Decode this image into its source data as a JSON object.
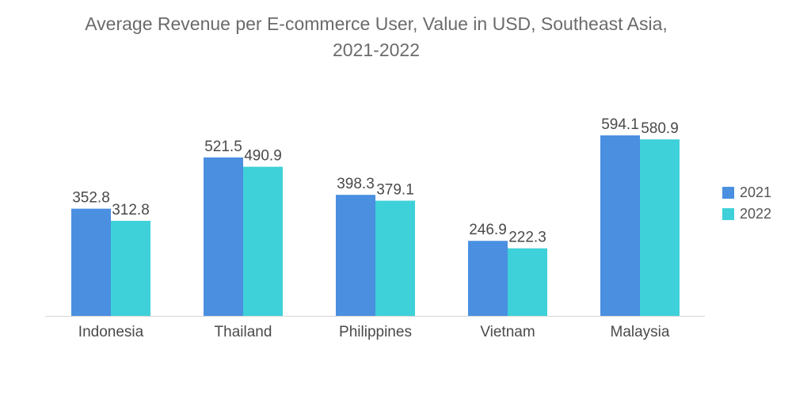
{
  "chart_data": {
    "type": "bar",
    "title": "Average Revenue per E-commerce User, Value in USD, Southeast Asia,",
    "subtitle": "2021-2022",
    "categories": [
      "Indonesia",
      "Thailand",
      "Philippines",
      "Vietnam",
      "Malaysia"
    ],
    "series": [
      {
        "name": "2021",
        "values": [
          352.8,
          521.5,
          398.3,
          246.9,
          594.1
        ],
        "color": "#4a8fe0"
      },
      {
        "name": "2022",
        "values": [
          312.8,
          490.9,
          379.1,
          222.3,
          580.9
        ],
        "color": "#3ed1d9"
      }
    ],
    "value_labels": {
      "2021": [
        "352.8",
        "521.5",
        "398.3",
        "246.9",
        "594.1"
      ],
      "2022": [
        "312.8",
        "490.9",
        "379.1",
        "222.3",
        "580.9"
      ]
    },
    "ylim": [
      0,
      700
    ],
    "grid": false,
    "legend_position": "right",
    "baseline_color": "#d6d6d6",
    "label_color": "#4a4a4a"
  }
}
